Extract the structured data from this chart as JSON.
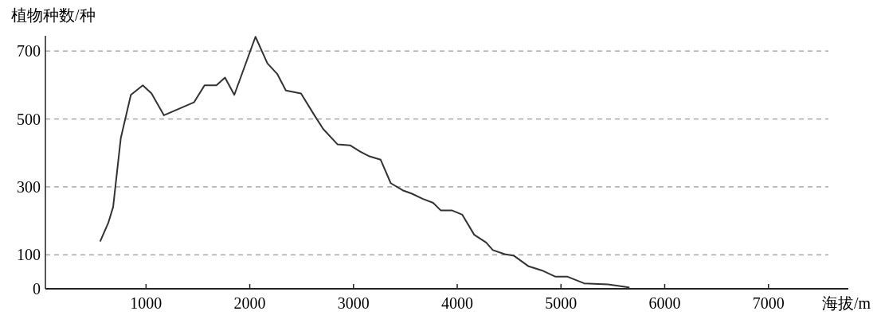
{
  "chart_data": {
    "type": "line",
    "ylabel": "植物种数/种",
    "xlabel": "海拔/m",
    "x": [
      560,
      636,
      683,
      757,
      854,
      969,
      1053,
      1173,
      1462,
      1564,
      1679,
      1761,
      1851,
      2055,
      2170,
      2264,
      2348,
      2494,
      2617,
      2707,
      2847,
      2970,
      3065,
      3154,
      3262,
      3359,
      3474,
      3564,
      3666,
      3768,
      3840,
      3947,
      4049,
      4164,
      4279,
      4343,
      4458,
      4548,
      4689,
      4816,
      4944,
      5059,
      5223,
      5454,
      5654
    ],
    "series": [
      {
        "color": "#333333",
        "values": [
          141,
          194,
          241,
          444,
          571,
          599,
          575,
          511,
          549,
          599,
          599,
          622,
          571,
          742,
          664,
          633,
          584,
          575,
          514,
          471,
          425,
          422,
          404,
          390,
          380,
          311,
          290,
          280,
          265,
          253,
          231,
          231,
          218,
          159,
          136,
          114,
          102,
          97,
          66,
          54,
          36,
          36,
          16,
          13,
          4
        ]
      }
    ],
    "xlim": [
      30,
      7770
    ],
    "ylim": [
      0,
      745
    ],
    "xticks": [
      1000,
      2000,
      3000,
      4000,
      5000,
      6000,
      7000
    ],
    "yticks": [
      0,
      100,
      300,
      500,
      700
    ],
    "grid": "y",
    "line_style": "solid",
    "marker": "none"
  }
}
